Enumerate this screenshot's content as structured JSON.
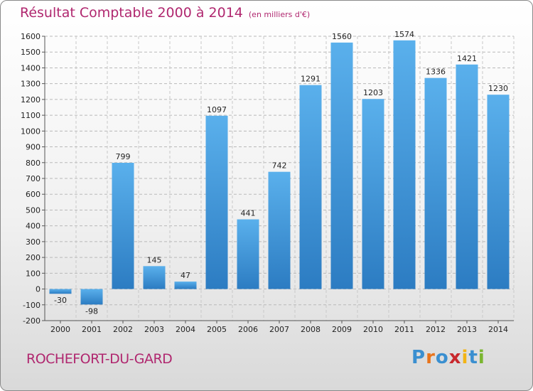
{
  "header": {
    "title": "Résultat Comptable 2000 à 2014",
    "subtitle": "(en milliers d'€)"
  },
  "footer": {
    "commune": "ROCHEFORT-DU-GARD",
    "logo": "Proxiti"
  },
  "colors": {
    "title": "#b0276f",
    "bar_top": "#5ab0ec",
    "bar_bottom": "#2c7cc2",
    "logo": [
      "#3a8fd0",
      "#e8741c",
      "#3a8fd0",
      "#c8282d",
      "#f2b415",
      "#3a8fd0",
      "#7ab630"
    ]
  },
  "chart_data": {
    "type": "bar",
    "title": "Résultat Comptable 2000 à 2014",
    "subtitle": "(en milliers d'€)",
    "xlabel": "",
    "ylabel": "",
    "categories": [
      "2000",
      "2001",
      "2002",
      "2003",
      "2004",
      "2005",
      "2006",
      "2007",
      "2008",
      "2009",
      "2010",
      "2011",
      "2012",
      "2013",
      "2014"
    ],
    "values": [
      -30,
      -98,
      799,
      145,
      47,
      1097,
      441,
      742,
      1291,
      1560,
      1203,
      1574,
      1336,
      1421,
      1230
    ],
    "ylim": [
      -200,
      1600
    ],
    "yticks": [
      -200,
      -100,
      0,
      100,
      200,
      300,
      400,
      500,
      600,
      700,
      800,
      900,
      1000,
      1100,
      1200,
      1300,
      1400,
      1500,
      1600
    ],
    "grid": true,
    "legend": "none"
  }
}
